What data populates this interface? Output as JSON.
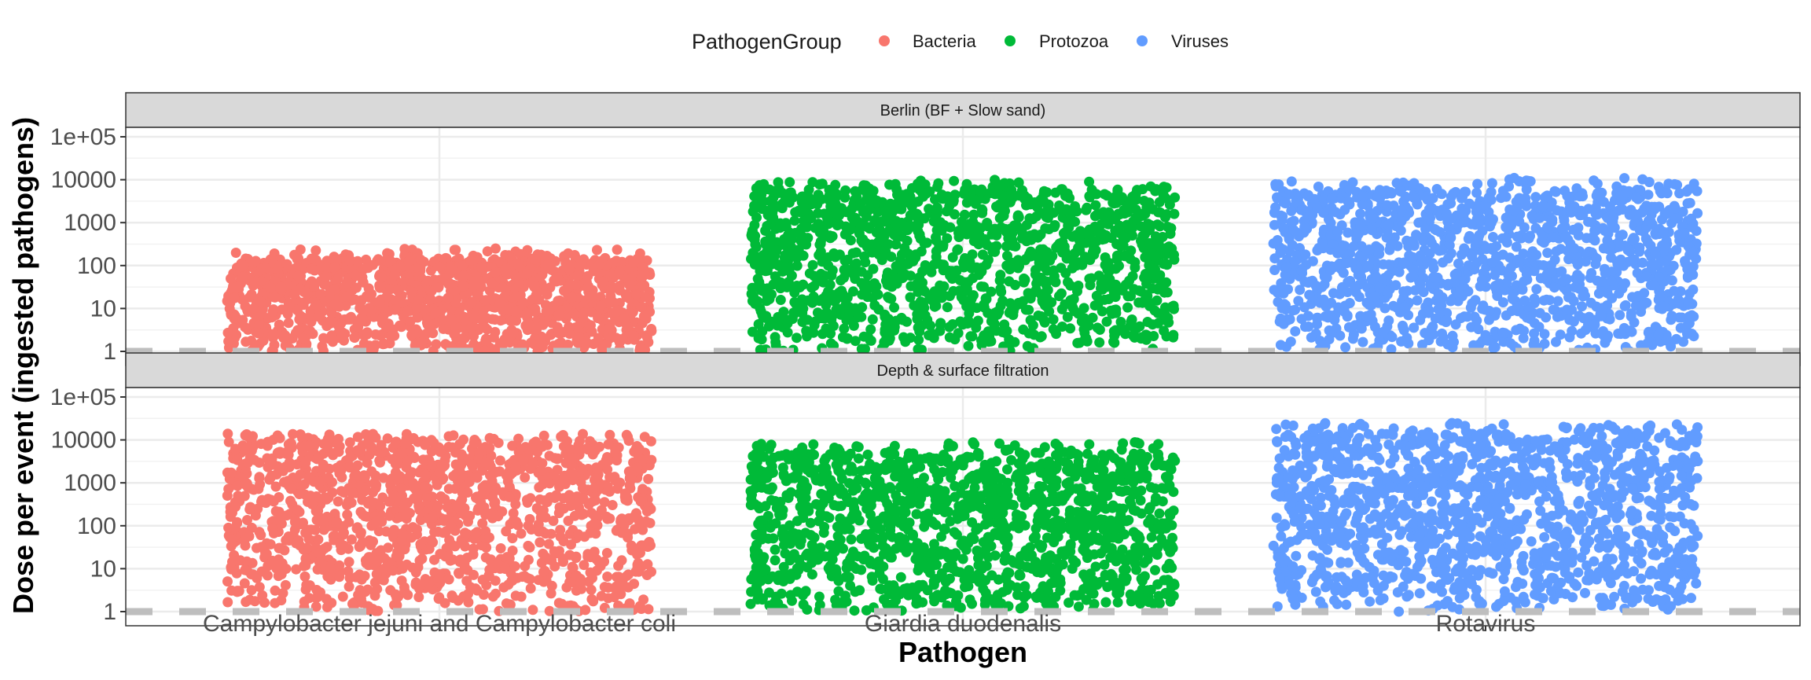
{
  "chart_data": {
    "type": "scatter",
    "subtype": "jitter-strip",
    "xlabel": "Pathogen",
    "ylabel": "Dose per event (ingested pathogens)",
    "y_scale": "log10",
    "ylim": [
      1,
      100000
    ],
    "y_ticks": [
      "1",
      "10",
      "100",
      "1000",
      "10000",
      "1e+05"
    ],
    "categories": [
      "Campylobacter jejuni and Campylobacter coli",
      "Giardia duodenalis",
      "Rotavirus"
    ],
    "legend": {
      "title": "PathogenGroup",
      "position": "top",
      "entries": [
        {
          "label": "Bacteria",
          "color": "#F8766D"
        },
        {
          "label": "Protozoa",
          "color": "#00BA38"
        },
        {
          "label": "Viruses",
          "color": "#619CFF"
        }
      ]
    },
    "reference_line": {
      "y": 1,
      "style": "dashed",
      "color": "#bebebe"
    },
    "grid": true,
    "panels": [
      {
        "title": "Berlin (BF + Slow sand)",
        "series": [
          {
            "category": "Campylobacter jejuni and Campylobacter coli",
            "group": "Bacteria",
            "y_min": 1,
            "y_typical_max": 150,
            "y_max": 250
          },
          {
            "category": "Giardia duodenalis",
            "group": "Protozoa",
            "y_min": 1,
            "y_typical_max": 6000,
            "y_max": 10000
          },
          {
            "category": "Rotavirus",
            "group": "Viruses",
            "y_min": 1,
            "y_typical_max": 6000,
            "y_max": 11000
          }
        ]
      },
      {
        "title": "Depth & surface filtration",
        "series": [
          {
            "category": "Campylobacter jejuni and Campylobacter coli",
            "group": "Bacteria",
            "y_min": 1,
            "y_typical_max": 10000,
            "y_max": 14000
          },
          {
            "category": "Giardia duodenalis",
            "group": "Protozoa",
            "y_min": 1,
            "y_typical_max": 5000,
            "y_max": 9000
          },
          {
            "category": "Rotavirus",
            "group": "Viruses",
            "y_min": 1,
            "y_typical_max": 15000,
            "y_max": 25000
          }
        ]
      }
    ]
  }
}
